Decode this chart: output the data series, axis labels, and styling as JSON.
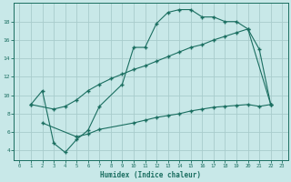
{
  "xlabel": "Humidex (Indice chaleur)",
  "bg_color": "#c8e8e8",
  "grid_color": "#a8cccc",
  "line_color": "#1a6e60",
  "line1_x": [
    1,
    2,
    3,
    4,
    5,
    6,
    7,
    9,
    10,
    11,
    12,
    13,
    14,
    15,
    16,
    17,
    18,
    19,
    20,
    21,
    22
  ],
  "line1_y": [
    9.0,
    10.5,
    4.8,
    3.8,
    5.2,
    6.2,
    8.8,
    11.2,
    15.2,
    15.2,
    17.8,
    19.0,
    19.3,
    19.3,
    18.5,
    18.5,
    18.0,
    18.0,
    17.2,
    15.0,
    9.0
  ],
  "line2_x": [
    1,
    3,
    4,
    5,
    6,
    7,
    8,
    9,
    10,
    11,
    12,
    13,
    14,
    15,
    16,
    17,
    18,
    19,
    20,
    22
  ],
  "line2_y": [
    9.0,
    8.5,
    8.8,
    9.5,
    10.5,
    11.2,
    11.8,
    12.3,
    12.8,
    13.2,
    13.7,
    14.2,
    14.7,
    15.2,
    15.5,
    16.0,
    16.4,
    16.8,
    17.2,
    9.0
  ],
  "line3_x": [
    2,
    5,
    6,
    7,
    10,
    11,
    12,
    13,
    14,
    15,
    16,
    17,
    18,
    19,
    20,
    21,
    22
  ],
  "line3_y": [
    7.0,
    5.5,
    5.8,
    6.3,
    7.0,
    7.3,
    7.6,
    7.8,
    8.0,
    8.3,
    8.5,
    8.7,
    8.8,
    8.9,
    9.0,
    8.8,
    9.0
  ],
  "ylim": [
    3.0,
    20.0
  ],
  "xlim": [
    -0.5,
    23.5
  ],
  "yticks": [
    4,
    6,
    8,
    10,
    12,
    14,
    16,
    18
  ],
  "xticks": [
    0,
    1,
    2,
    3,
    4,
    5,
    6,
    7,
    8,
    9,
    10,
    11,
    12,
    13,
    14,
    15,
    16,
    17,
    18,
    19,
    20,
    21,
    22,
    23
  ]
}
